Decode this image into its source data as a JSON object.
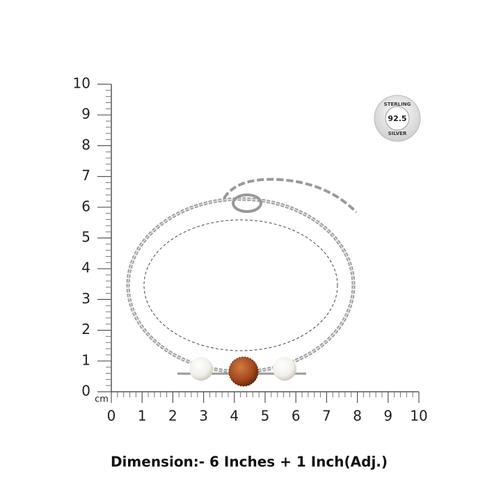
{
  "ruler": {
    "unit": "cm",
    "y_labels": [
      0,
      1,
      2,
      3,
      4,
      5,
      6,
      7,
      8,
      9,
      10
    ],
    "x_labels": [
      0,
      1,
      2,
      3,
      4,
      5,
      6,
      7,
      8,
      9,
      10
    ]
  },
  "badge": {
    "top": "STERLING",
    "center": "92.5",
    "bottom": "SILVER"
  },
  "caption": "Dimension:- 6 Inches + 1 Inch(Adj.)"
}
